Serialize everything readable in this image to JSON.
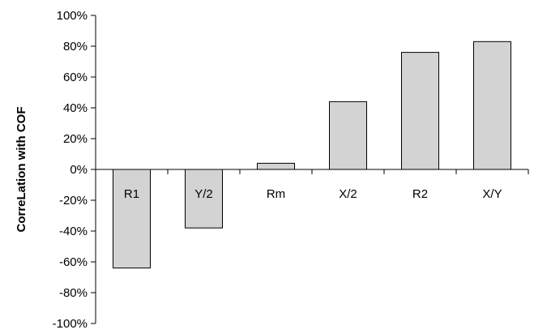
{
  "chart_data": {
    "type": "bar",
    "title": "",
    "xlabel": "",
    "ylabel": "CorreLation with COF",
    "categories": [
      "R1",
      "Y/2",
      "Rm",
      "X/2",
      "R2",
      "X/Y"
    ],
    "values": [
      -64,
      -38,
      4,
      44,
      76,
      83
    ],
    "ylim": [
      -100,
      100
    ],
    "yticks": [
      100,
      80,
      60,
      40,
      20,
      0,
      -20,
      -40,
      -60,
      -80,
      -100
    ],
    "ytick_labels": [
      "100%",
      "80%",
      "60%",
      "40%",
      "20%",
      "0%",
      "-20%",
      "-40%",
      "-60%",
      "-80%",
      "-100%"
    ],
    "grid": false,
    "legend": "none",
    "colors": {
      "bar_fill": "#d3d3d3",
      "bar_stroke": "#000000",
      "axis": "#000000"
    }
  }
}
